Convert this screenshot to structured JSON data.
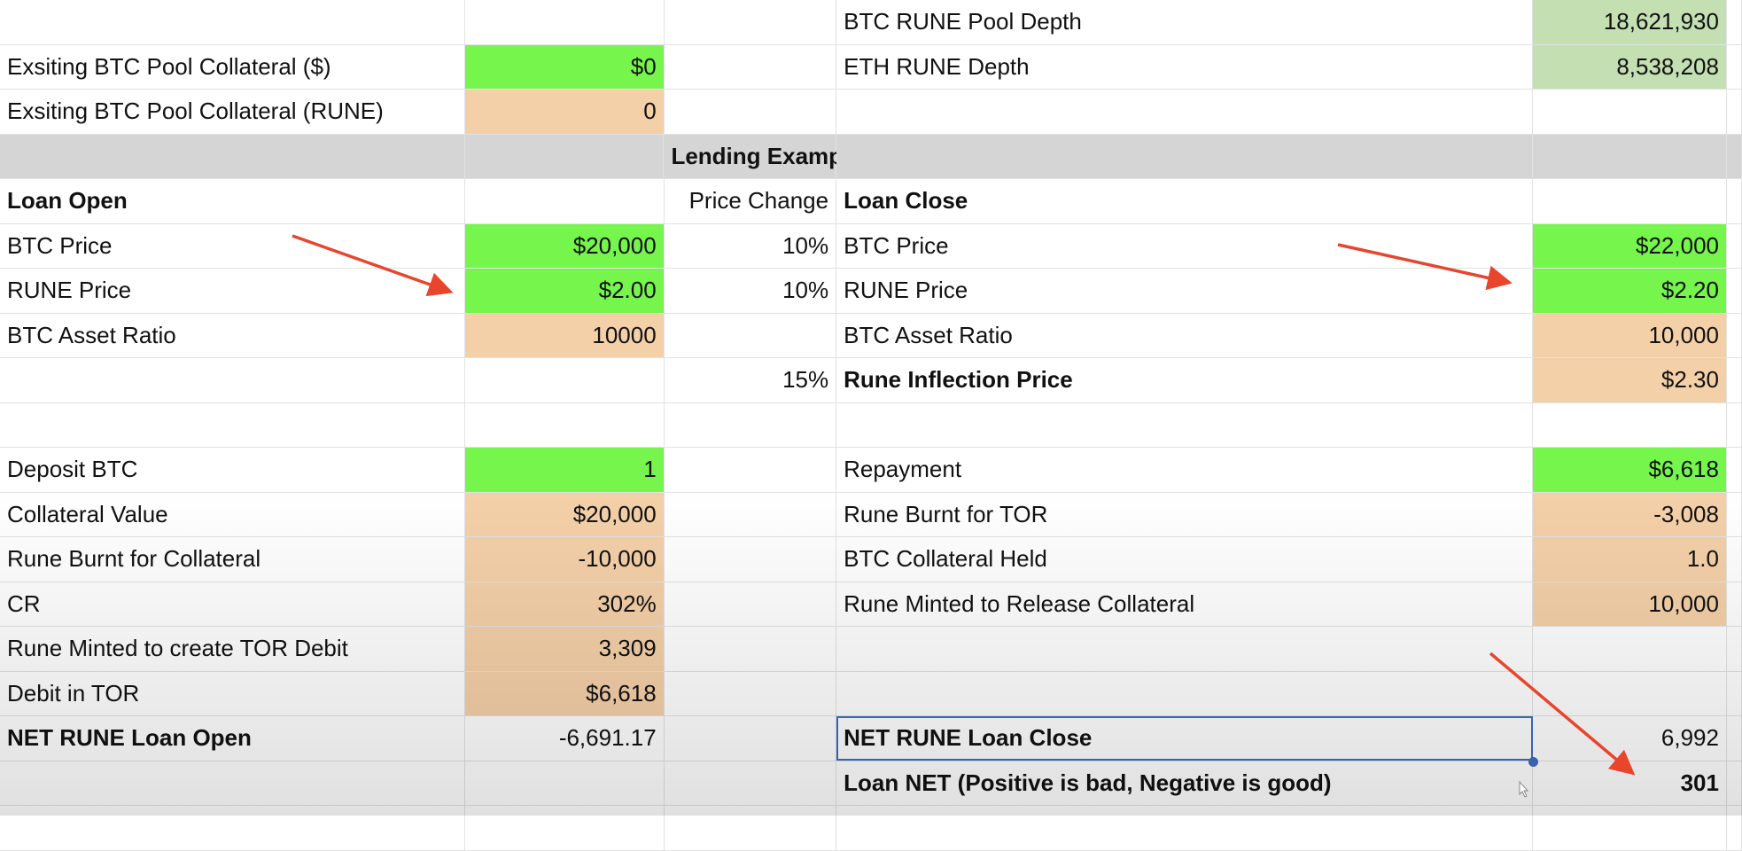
{
  "colors": {
    "input_green": "#76f54d",
    "calc_peach": "#f4d0a8",
    "depth_green": "#c4dfb2",
    "header_gray": "#d5d5d5",
    "selection_blue": "#3d6fc0",
    "arrow_red": "#e8452c"
  },
  "rows": [
    {
      "cells": [
        "",
        "",
        "",
        "BTC RUNE Pool Depth",
        "18,621,930"
      ],
      "fills": [
        "",
        "",
        "",
        "",
        "lgreen"
      ]
    },
    {
      "cells": [
        "Exsiting BTC Pool Collateral ($)",
        "$0",
        "",
        "ETH RUNE Depth",
        "8,538,208"
      ],
      "fills": [
        "",
        "green",
        "",
        "",
        "lgreen"
      ]
    },
    {
      "cells": [
        "Exsiting BTC Pool Collateral (RUNE)",
        "0",
        "",
        "",
        ""
      ],
      "fills": [
        "",
        "peach",
        "",
        "",
        ""
      ]
    },
    {
      "cells": [
        "",
        "",
        "Lending Example",
        "",
        ""
      ],
      "header": true,
      "bold": [
        false,
        false,
        true,
        false,
        false
      ]
    },
    {
      "cells": [
        "Loan Open",
        "",
        "Price Change",
        "Loan Close",
        ""
      ],
      "bold": [
        true,
        false,
        false,
        true,
        false
      ]
    },
    {
      "cells": [
        "BTC Price",
        "$20,000",
        "10%",
        "BTC Price",
        "$22,000"
      ],
      "fills": [
        "",
        "green",
        "",
        "",
        "green"
      ]
    },
    {
      "cells": [
        "RUNE Price",
        "$2.00",
        "10%",
        "RUNE Price",
        "$2.20"
      ],
      "fills": [
        "",
        "green",
        "",
        "",
        "green"
      ]
    },
    {
      "cells": [
        "BTC Asset Ratio",
        "10000",
        "",
        "BTC Asset Ratio",
        "10,000"
      ],
      "fills": [
        "",
        "peach",
        "",
        "",
        "peach"
      ]
    },
    {
      "cells": [
        "",
        "",
        "15%",
        "Rune Inflection Price",
        "$2.30"
      ],
      "fills": [
        "",
        "",
        "",
        "",
        "peach"
      ],
      "bold": [
        false,
        false,
        false,
        true,
        false
      ]
    },
    {
      "cells": [
        "",
        "",
        "",
        "",
        ""
      ]
    },
    {
      "cells": [
        "Deposit BTC",
        "1",
        "",
        "Repayment",
        "$6,618"
      ],
      "fills": [
        "",
        "green",
        "",
        "",
        "green"
      ]
    },
    {
      "cells": [
        "Collateral Value",
        "$20,000",
        "",
        "Rune Burnt for TOR",
        "-3,008"
      ],
      "fills": [
        "",
        "peach",
        "",
        "",
        "peach"
      ]
    },
    {
      "cells": [
        "Rune Burnt for Collateral",
        "-10,000",
        "",
        "BTC Collateral Held",
        "1.0"
      ],
      "fills": [
        "",
        "peach",
        "",
        "",
        "peach"
      ]
    },
    {
      "cells": [
        "CR",
        "302%",
        "",
        "Rune Minted to Release Collateral",
        "10,000"
      ],
      "fills": [
        "",
        "peach",
        "",
        "",
        "peach"
      ]
    },
    {
      "cells": [
        "Rune Minted to create TOR Debit",
        "3,309",
        "",
        "",
        ""
      ],
      "fills": [
        "",
        "peach",
        "",
        "",
        ""
      ]
    },
    {
      "cells": [
        "Debit in TOR",
        "$6,618",
        "",
        "",
        ""
      ],
      "fills": [
        "",
        "peach",
        "",
        "",
        ""
      ]
    },
    {
      "cells": [
        "NET RUNE Loan Open",
        "-6,691.17",
        "",
        "NET RUNE Loan Close",
        "6,992"
      ],
      "bold": [
        true,
        false,
        false,
        true,
        false
      ],
      "selected": 3
    },
    {
      "cells": [
        "",
        "",
        "",
        "Loan NET (Positive is bad, Negative is good)",
        "301"
      ],
      "bold": [
        false,
        false,
        false,
        true,
        true
      ]
    },
    {
      "cells": [
        "",
        "",
        "",
        "",
        ""
      ]
    }
  ]
}
